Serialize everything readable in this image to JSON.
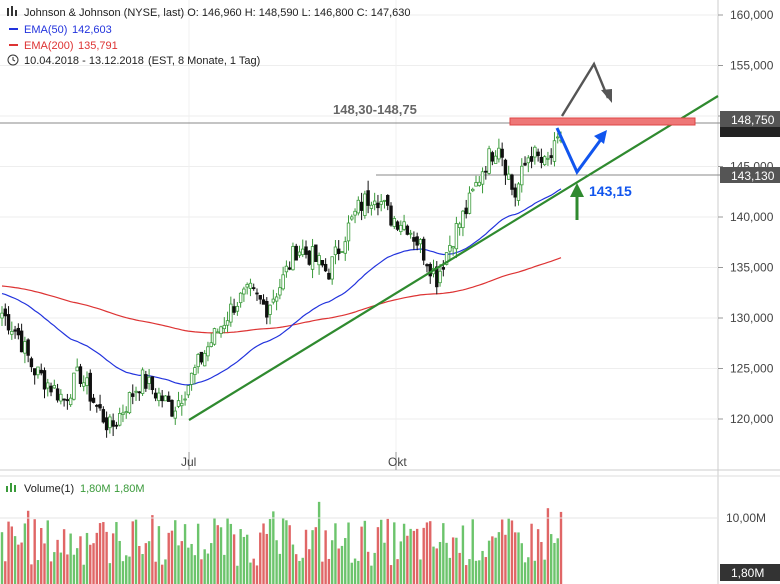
{
  "header": {
    "symbol_line": "Johnson & Johnson (NYSE, last)  O: 146,960  H: 148,590  L: 146,800  C: 147,630",
    "ema50_label": "EMA(50)",
    "ema50_value": "142,603",
    "ema200_label": "EMA(200)",
    "ema200_value": "135,791",
    "period": "10.04.2018 - 13.12.2018",
    "period_note": "(EST, 8 Monate, 1 Tag)"
  },
  "volume_panel": {
    "label": "Volume(1)",
    "value1": "1,80M",
    "value2": "1,80M",
    "tick_label": "10,00M",
    "current_label": "1,80M"
  },
  "annotations": {
    "resistance_zone": "148,30-148,75",
    "resistance_price_tag": "148,750",
    "support_price_tag": "143,130",
    "support_target": "143,15"
  },
  "colors": {
    "up": "#3a9a3a",
    "down": "#111111",
    "ema50": "#2233dd",
    "ema200": "#dd3333",
    "trendline": "#2f8a2f",
    "resistance": "#ee6666",
    "arrow_blue": "#1155ee",
    "arrow_grey": "#555555",
    "arrow_green": "#2f8a2f",
    "vol_up": "#6cc46c",
    "vol_down": "#e06666"
  },
  "chart_data": {
    "type": "candlestick",
    "title": "Johnson & Johnson (NYSE, last)",
    "ylim": [
      114,
      162
    ],
    "price_ticks": [
      "160,000",
      "155,000",
      "150,000",
      "145,000",
      "140,000",
      "135,000",
      "130,000",
      "125,000",
      "120,000"
    ],
    "price_tick_values": [
      160,
      155,
      150,
      145,
      140,
      135,
      130,
      125,
      120
    ],
    "x_ticks": [
      "Jul",
      "Okt"
    ],
    "ohlc_close_path": [
      {
        "x": "2018-04-10",
        "y": 130.5
      },
      {
        "x": "2018-04-20",
        "y": 128.5
      },
      {
        "x": "2018-05-01",
        "y": 125.0
      },
      {
        "x": "2018-05-08",
        "y": 123.5
      },
      {
        "x": "2018-05-15",
        "y": 122.0
      },
      {
        "x": "2018-05-22",
        "y": 124.5
      },
      {
        "x": "2018-05-29",
        "y": 121.5
      },
      {
        "x": "2018-06-05",
        "y": 119.0
      },
      {
        "x": "2018-06-10",
        "y": 121.5
      },
      {
        "x": "2018-06-15",
        "y": 124.0
      },
      {
        "x": "2018-06-22",
        "y": 122.5
      },
      {
        "x": "2018-06-29",
        "y": 121.0
      },
      {
        "x": "2018-07-05",
        "y": 123.5
      },
      {
        "x": "2018-07-12",
        "y": 126.5
      },
      {
        "x": "2018-07-18",
        "y": 129.0
      },
      {
        "x": "2018-07-25",
        "y": 131.5
      },
      {
        "x": "2018-08-01",
        "y": 132.5
      },
      {
        "x": "2018-08-08",
        "y": 131.0
      },
      {
        "x": "2018-08-15",
        "y": 133.5
      },
      {
        "x": "2018-08-22",
        "y": 137.0
      },
      {
        "x": "2018-08-29",
        "y": 136.0
      },
      {
        "x": "2018-09-05",
        "y": 134.5
      },
      {
        "x": "2018-09-12",
        "y": 138.0
      },
      {
        "x": "2018-09-19",
        "y": 141.0
      },
      {
        "x": "2018-09-26",
        "y": 142.5
      },
      {
        "x": "2018-10-01",
        "y": 140.0
      },
      {
        "x": "2018-10-08",
        "y": 139.5
      },
      {
        "x": "2018-10-15",
        "y": 137.0
      },
      {
        "x": "2018-10-22",
        "y": 134.0
      },
      {
        "x": "2018-10-29",
        "y": 138.0
      },
      {
        "x": "2018-11-05",
        "y": 141.0
      },
      {
        "x": "2018-11-12",
        "y": 145.0
      },
      {
        "x": "2018-11-19",
        "y": 147.5
      },
      {
        "x": "2018-11-26",
        "y": 142.0
      },
      {
        "x": "2018-12-03",
        "y": 146.5
      },
      {
        "x": "2018-12-10",
        "y": 145.0
      },
      {
        "x": "2018-12-13",
        "y": 147.63
      }
    ],
    "series": [
      {
        "name": "EMA(50)",
        "last": 142.603
      },
      {
        "name": "EMA(200)",
        "last": 135.791
      }
    ],
    "resistance_zone": [
      148.3,
      148.75
    ],
    "support_level": 143.13,
    "volume_tick": 10000000
  }
}
